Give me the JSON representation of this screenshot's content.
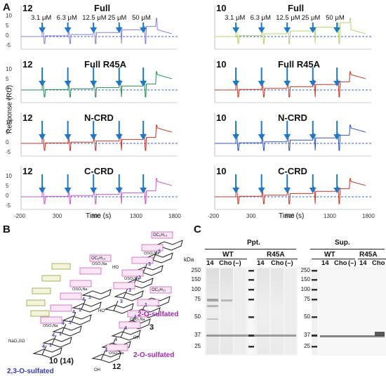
{
  "panel_labels": {
    "a": "A",
    "b": "B",
    "c": "C"
  },
  "spr": {
    "y_axis_title": "Response (RU)",
    "x_axis_title": "Time (s)",
    "x_ticks": [
      "-200",
      "300",
      "800",
      "1300",
      "1800"
    ],
    "y_ticks": [
      "10",
      "5",
      "0",
      "-5"
    ],
    "concentrations": [
      "3.1 μM",
      "6.3 μM",
      "12.5 μM",
      "25 μM",
      "50 μM"
    ],
    "left_compound": "12",
    "right_compound": "10",
    "rows": [
      {
        "condition": "Full"
      },
      {
        "condition": "Full R45A"
      },
      {
        "condition": "N-CRD"
      },
      {
        "condition": "C-CRD"
      }
    ],
    "colors": {
      "arrow": "#1f77c8",
      "baseline": "#3a67c9"
    }
  },
  "structures": {
    "compound_10": "10",
    "compound_14": "(14)",
    "label_10": "2,3-O-sulfated",
    "compound_3": "3",
    "label_3": "2-O-sulfated",
    "compound_12": "12",
    "label_12": "2-O-sulfated",
    "groups": {
      "ococ": "OC₆H₁₃",
      "oso3na": "OSO₃Na",
      "naso": "NaO₃SO",
      "oh": "OH",
      "ho": "HO"
    }
  },
  "gel": {
    "kda_label": "kDa",
    "ppt_title": "Ppt.",
    "sup_title": "Sup.",
    "wt": "WT",
    "r45a": "R45A",
    "lanes_ppt": [
      "14",
      "Cho",
      "(–)",
      "14",
      "Cho",
      "(–)"
    ],
    "lanes_sup": [
      "14",
      "Cho",
      "(–)",
      "14",
      "Cho"
    ],
    "markers": [
      "250",
      "150",
      "100",
      "75",
      "50",
      "37",
      "25"
    ]
  }
}
